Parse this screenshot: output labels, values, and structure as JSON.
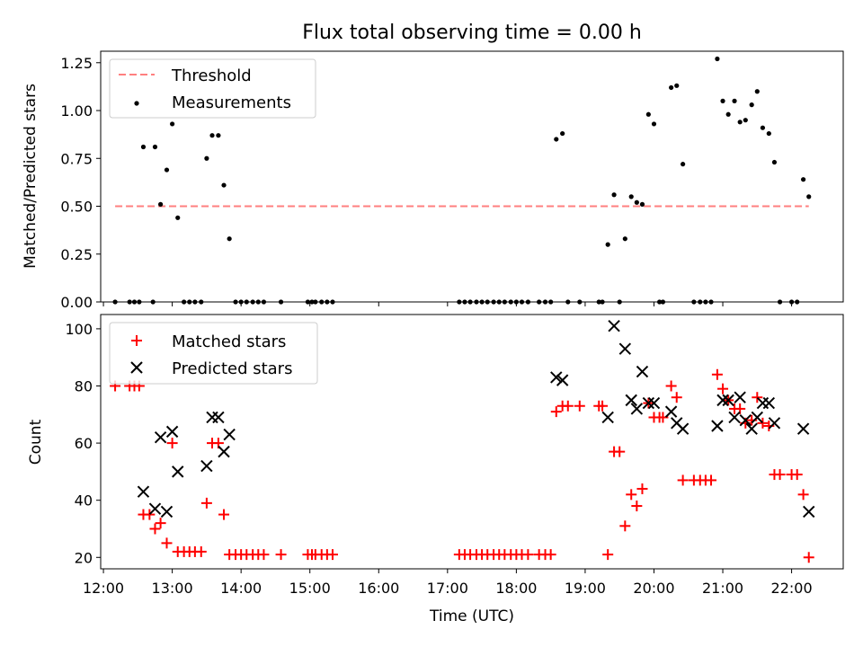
{
  "chart_data": [
    {
      "type": "scatter",
      "title": "Flux total observing time = 0.00 h",
      "xlabel": "",
      "ylabel": "Matched/Predicted stars",
      "xlim": [
        11.96,
        22.75
      ],
      "ylim": [
        0,
        1.31
      ],
      "xticks": [
        12,
        13,
        14,
        15,
        16,
        17,
        18,
        19,
        20,
        21,
        22
      ],
      "yticks": [
        0.0,
        0.25,
        0.5,
        0.75,
        1.0,
        1.25
      ],
      "ytick_labels": [
        "0.00",
        "0.25",
        "0.50",
        "0.75",
        "1.00",
        "1.25"
      ],
      "legend": {
        "position": "top-left",
        "entries": [
          "Threshold",
          "Measurements"
        ]
      },
      "threshold": {
        "name": "Threshold",
        "color": "#ff7f7f",
        "style": "dashed",
        "x": [
          12.17,
          22.25
        ],
        "y": 0.5
      },
      "series": [
        {
          "name": "Measurements",
          "marker": "dot",
          "color": "#000000",
          "points": [
            [
              12.17,
              0.0
            ],
            [
              12.38,
              0.0
            ],
            [
              12.45,
              0.0
            ],
            [
              12.52,
              0.0
            ],
            [
              12.58,
              0.81
            ],
            [
              12.72,
              0.0
            ],
            [
              12.75,
              0.81
            ],
            [
              12.83,
              0.51
            ],
            [
              12.92,
              0.69
            ],
            [
              13.0,
              0.93
            ],
            [
              13.08,
              0.44
            ],
            [
              13.17,
              0.0
            ],
            [
              13.25,
              0.0
            ],
            [
              13.33,
              0.0
            ],
            [
              13.42,
              0.0
            ],
            [
              13.5,
              0.75
            ],
            [
              13.58,
              0.87
            ],
            [
              13.67,
              0.87
            ],
            [
              13.75,
              0.61
            ],
            [
              13.83,
              0.33
            ],
            [
              13.92,
              0.0
            ],
            [
              14.0,
              0.0
            ],
            [
              14.08,
              0.0
            ],
            [
              14.17,
              0.0
            ],
            [
              14.25,
              0.0
            ],
            [
              14.33,
              0.0
            ],
            [
              14.58,
              0.0
            ],
            [
              14.97,
              0.0
            ],
            [
              15.03,
              0.0
            ],
            [
              15.08,
              0.0
            ],
            [
              15.17,
              0.0
            ],
            [
              15.25,
              0.0
            ],
            [
              15.33,
              0.0
            ],
            [
              17.17,
              0.0
            ],
            [
              17.25,
              0.0
            ],
            [
              17.33,
              0.0
            ],
            [
              17.42,
              0.0
            ],
            [
              17.5,
              0.0
            ],
            [
              17.58,
              0.0
            ],
            [
              17.67,
              0.0
            ],
            [
              17.75,
              0.0
            ],
            [
              17.83,
              0.0
            ],
            [
              17.92,
              0.0
            ],
            [
              18.0,
              0.0
            ],
            [
              18.08,
              0.0
            ],
            [
              18.17,
              0.0
            ],
            [
              18.33,
              0.0
            ],
            [
              18.42,
              0.0
            ],
            [
              18.5,
              0.0
            ],
            [
              18.58,
              0.85
            ],
            [
              18.67,
              0.88
            ],
            [
              18.75,
              0.0
            ],
            [
              18.92,
              0.0
            ],
            [
              19.2,
              0.0
            ],
            [
              19.25,
              0.0
            ],
            [
              19.33,
              0.3
            ],
            [
              19.42,
              0.56
            ],
            [
              19.5,
              0.0
            ],
            [
              19.58,
              0.33
            ],
            [
              19.67,
              0.55
            ],
            [
              19.75,
              0.52
            ],
            [
              19.83,
              0.51
            ],
            [
              19.92,
              0.98
            ],
            [
              20.0,
              0.93
            ],
            [
              20.08,
              0.0
            ],
            [
              20.13,
              0.0
            ],
            [
              20.25,
              1.12
            ],
            [
              20.33,
              1.13
            ],
            [
              20.42,
              0.72
            ],
            [
              20.58,
              0.0
            ],
            [
              20.67,
              0.0
            ],
            [
              20.75,
              0.0
            ],
            [
              20.83,
              0.0
            ],
            [
              20.92,
              1.27
            ],
            [
              21.0,
              1.05
            ],
            [
              21.08,
              0.98
            ],
            [
              21.17,
              1.05
            ],
            [
              21.25,
              0.94
            ],
            [
              21.33,
              0.95
            ],
            [
              21.42,
              1.03
            ],
            [
              21.5,
              1.1
            ],
            [
              21.58,
              0.91
            ],
            [
              21.67,
              0.88
            ],
            [
              21.75,
              0.73
            ],
            [
              21.83,
              0.0
            ],
            [
              22.0,
              0.0
            ],
            [
              22.08,
              0.0
            ],
            [
              22.17,
              0.64
            ],
            [
              22.25,
              0.55
            ]
          ]
        }
      ]
    },
    {
      "type": "scatter",
      "title": "",
      "xlabel": "Time (UTC)",
      "ylabel": "Count",
      "xlim": [
        11.96,
        22.75
      ],
      "ylim": [
        16,
        105
      ],
      "xticks": [
        12,
        13,
        14,
        15,
        16,
        17,
        18,
        19,
        20,
        21,
        22
      ],
      "xtick_labels": [
        "12:00",
        "13:00",
        "14:00",
        "15:00",
        "16:00",
        "17:00",
        "18:00",
        "19:00",
        "20:00",
        "21:00",
        "22:00"
      ],
      "yticks": [
        20,
        40,
        60,
        80,
        100
      ],
      "legend": {
        "position": "top-left",
        "entries": [
          "Matched stars",
          "Predicted stars"
        ]
      },
      "series": [
        {
          "name": "Matched stars",
          "marker": "plus",
          "color": "#ff0000",
          "points": [
            [
              12.17,
              80
            ],
            [
              12.38,
              80
            ],
            [
              12.45,
              80
            ],
            [
              12.52,
              80
            ],
            [
              12.58,
              35
            ],
            [
              12.67,
              35
            ],
            [
              12.75,
              30
            ],
            [
              12.83,
              32
            ],
            [
              12.92,
              25
            ],
            [
              13.0,
              60
            ],
            [
              13.08,
              22
            ],
            [
              13.17,
              22
            ],
            [
              13.25,
              22
            ],
            [
              13.33,
              22
            ],
            [
              13.42,
              22
            ],
            [
              13.5,
              39
            ],
            [
              13.58,
              60
            ],
            [
              13.67,
              60
            ],
            [
              13.75,
              35
            ],
            [
              13.83,
              21
            ],
            [
              13.92,
              21
            ],
            [
              14.0,
              21
            ],
            [
              14.08,
              21
            ],
            [
              14.17,
              21
            ],
            [
              14.25,
              21
            ],
            [
              14.33,
              21
            ],
            [
              14.58,
              21
            ],
            [
              14.97,
              21
            ],
            [
              15.03,
              21
            ],
            [
              15.08,
              21
            ],
            [
              15.17,
              21
            ],
            [
              15.25,
              21
            ],
            [
              15.33,
              21
            ],
            [
              17.17,
              21
            ],
            [
              17.25,
              21
            ],
            [
              17.33,
              21
            ],
            [
              17.42,
              21
            ],
            [
              17.5,
              21
            ],
            [
              17.58,
              21
            ],
            [
              17.67,
              21
            ],
            [
              17.75,
              21
            ],
            [
              17.83,
              21
            ],
            [
              17.92,
              21
            ],
            [
              18.0,
              21
            ],
            [
              18.08,
              21
            ],
            [
              18.17,
              21
            ],
            [
              18.33,
              21
            ],
            [
              18.42,
              21
            ],
            [
              18.5,
              21
            ],
            [
              18.58,
              71
            ],
            [
              18.67,
              73
            ],
            [
              18.75,
              73
            ],
            [
              18.92,
              73
            ],
            [
              19.2,
              73
            ],
            [
              19.25,
              73
            ],
            [
              19.33,
              21
            ],
            [
              19.42,
              57
            ],
            [
              19.5,
              57
            ],
            [
              19.58,
              31
            ],
            [
              19.67,
              42
            ],
            [
              19.75,
              38
            ],
            [
              19.83,
              44
            ],
            [
              19.92,
              74
            ],
            [
              20.0,
              69
            ],
            [
              20.08,
              69
            ],
            [
              20.13,
              69
            ],
            [
              20.25,
              80
            ],
            [
              20.33,
              76
            ],
            [
              20.42,
              47
            ],
            [
              20.58,
              47
            ],
            [
              20.67,
              47
            ],
            [
              20.75,
              47
            ],
            [
              20.83,
              47
            ],
            [
              20.92,
              84
            ],
            [
              21.0,
              79
            ],
            [
              21.08,
              75
            ],
            [
              21.17,
              72
            ],
            [
              21.25,
              72
            ],
            [
              21.33,
              67
            ],
            [
              21.42,
              68
            ],
            [
              21.5,
              76
            ],
            [
              21.58,
              67
            ],
            [
              21.67,
              66
            ],
            [
              21.75,
              49
            ],
            [
              21.83,
              49
            ],
            [
              22.0,
              49
            ],
            [
              22.08,
              49
            ],
            [
              22.17,
              42
            ],
            [
              22.25,
              20
            ]
          ]
        },
        {
          "name": "Predicted stars",
          "marker": "cross",
          "color": "#000000",
          "points": [
            [
              12.58,
              43
            ],
            [
              12.75,
              37
            ],
            [
              12.83,
              62
            ],
            [
              12.92,
              36
            ],
            [
              13.0,
              64
            ],
            [
              13.08,
              50
            ],
            [
              13.5,
              52
            ],
            [
              13.58,
              69
            ],
            [
              13.67,
              69
            ],
            [
              13.75,
              57
            ],
            [
              13.83,
              63
            ],
            [
              18.58,
              83
            ],
            [
              18.67,
              82
            ],
            [
              19.33,
              69
            ],
            [
              19.42,
              101
            ],
            [
              19.58,
              93
            ],
            [
              19.67,
              75
            ],
            [
              19.75,
              72
            ],
            [
              19.83,
              85
            ],
            [
              19.92,
              74
            ],
            [
              20.0,
              74
            ],
            [
              20.25,
              71
            ],
            [
              20.33,
              67
            ],
            [
              20.42,
              65
            ],
            [
              20.92,
              66
            ],
            [
              21.0,
              75
            ],
            [
              21.08,
              75
            ],
            [
              21.17,
              69
            ],
            [
              21.25,
              76
            ],
            [
              21.33,
              68
            ],
            [
              21.42,
              65
            ],
            [
              21.5,
              69
            ],
            [
              21.58,
              74
            ],
            [
              21.67,
              74
            ],
            [
              21.75,
              67
            ],
            [
              22.17,
              65
            ],
            [
              22.25,
              36
            ]
          ]
        }
      ]
    }
  ]
}
